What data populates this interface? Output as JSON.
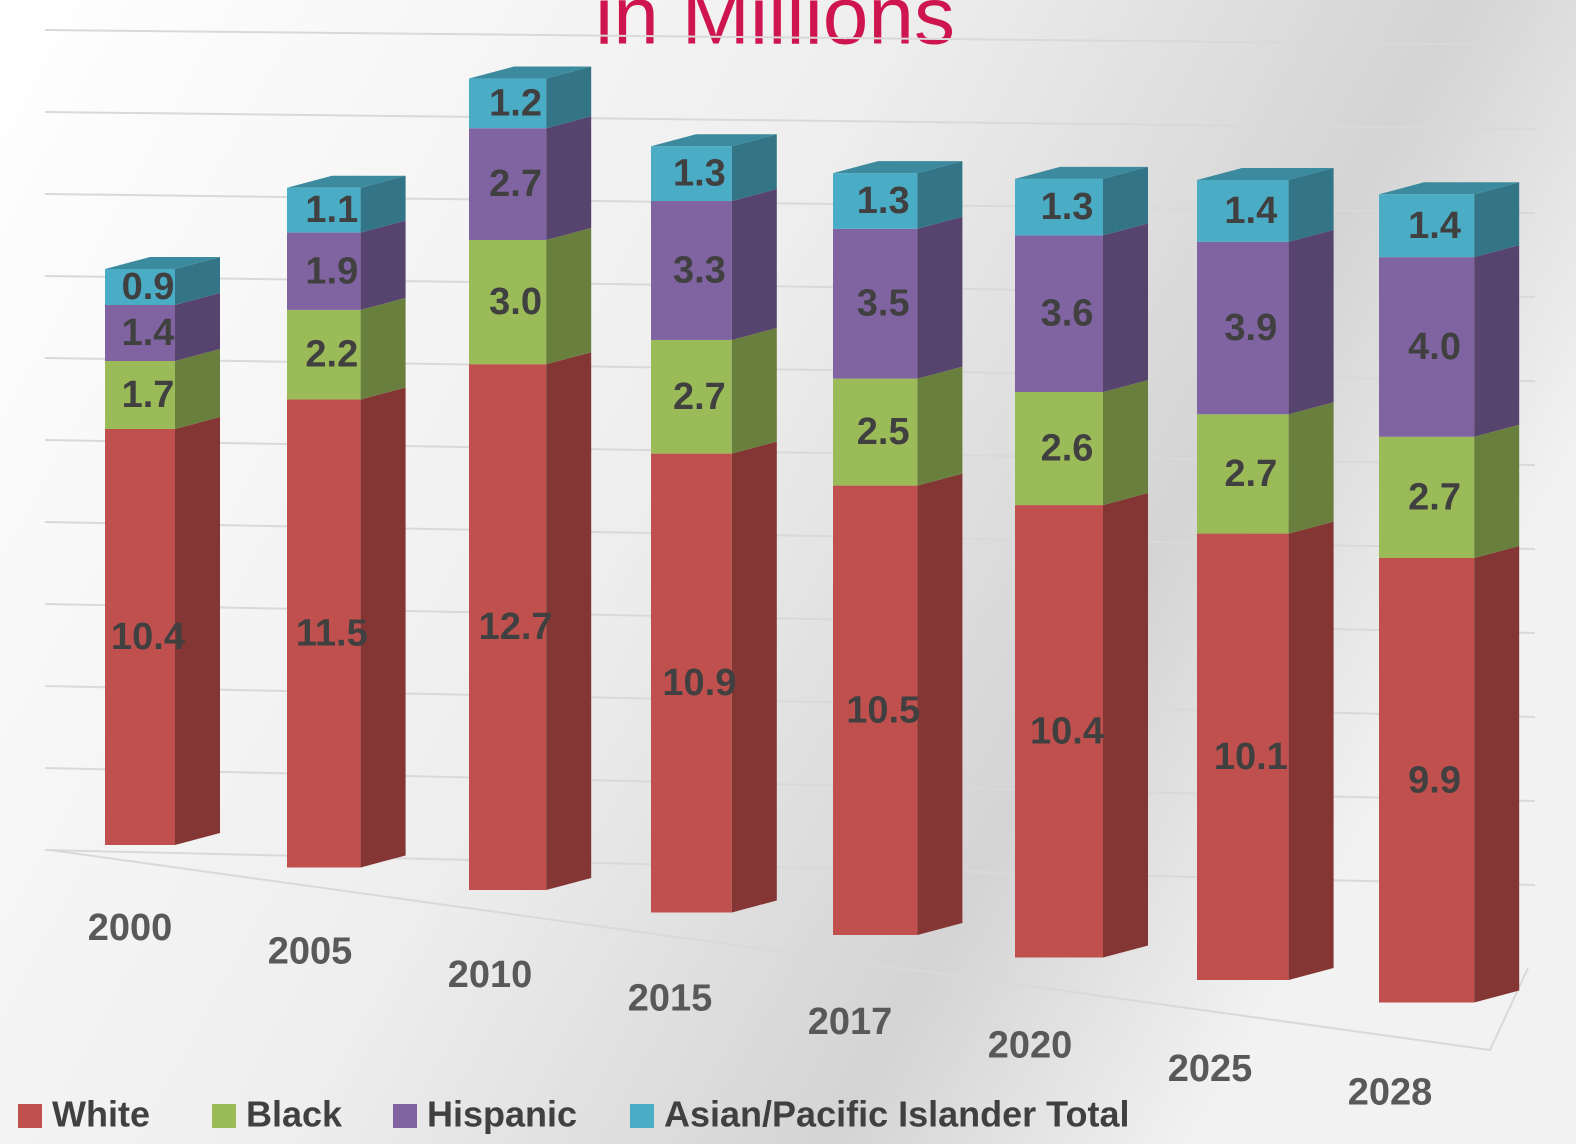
{
  "chart_data": {
    "type": "bar",
    "stacked": true,
    "title": "in Millions",
    "categories": [
      "2000",
      "2005",
      "2010",
      "2015",
      "2017",
      "2020",
      "2025",
      "2028"
    ],
    "series": [
      {
        "name": "White",
        "color": "#c0504d",
        "values": [
          10.4,
          11.5,
          12.7,
          10.9,
          10.5,
          10.4,
          10.1,
          9.9
        ]
      },
      {
        "name": "Black",
        "color": "#9bbb59",
        "values": [
          1.7,
          2.2,
          3.0,
          2.7,
          2.5,
          2.6,
          2.7,
          2.7
        ],
        "value_labels": [
          "1.7",
          "2.2",
          "3.0",
          "2.7",
          "2.5",
          "2.6",
          "2.7",
          "2.7"
        ]
      },
      {
        "name": "Hispanic",
        "color": "#8064a2",
        "values": [
          1.4,
          1.9,
          2.7,
          3.3,
          3.5,
          3.6,
          3.9,
          4.0
        ],
        "value_labels": [
          "1.4",
          "1.9",
          "2.7",
          "3.3",
          "3.5",
          "3.6",
          "3.9",
          "4.0"
        ]
      },
      {
        "name": "Asian/Pacific Islander Total",
        "color": "#4bacc6",
        "values": [
          0.9,
          1.1,
          1.2,
          1.3,
          1.3,
          1.3,
          1.4,
          1.4
        ]
      }
    ],
    "ylim": [
      0,
      20
    ],
    "yticks": [
      0,
      2,
      4,
      6,
      8,
      10,
      12,
      14,
      16,
      18,
      20
    ],
    "grid": true,
    "legend": "bottom"
  }
}
